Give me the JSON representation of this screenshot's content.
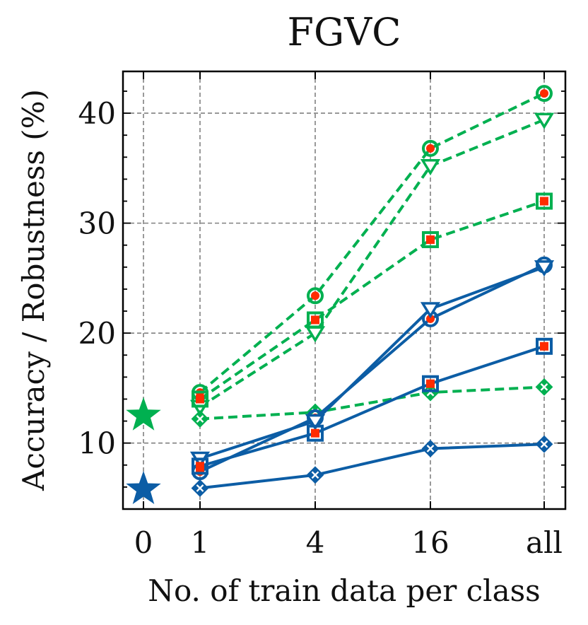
{
  "chart_data": {
    "type": "line",
    "title": "FGVC",
    "xlabel": "No. of train data per class",
    "ylabel": "Accuracy / Robustness (%)",
    "categories": [
      "0",
      "1",
      "4",
      "16",
      "all"
    ],
    "ylim": [
      4,
      43.8
    ],
    "yticks": [
      10,
      20,
      30,
      40
    ],
    "grid": true,
    "colors": {
      "green": "#00b050",
      "blue": "#0c5da5",
      "red": "#ff2c00"
    },
    "zero_shot": [
      {
        "name": "zero-shot-green",
        "value": 12.5,
        "color": "green"
      },
      {
        "name": "zero-shot-blue",
        "value": 5.8,
        "color": "blue"
      }
    ],
    "series": [
      {
        "name": "green-circle",
        "color": "green",
        "marker": "circle",
        "linestyle": "dashed",
        "values": [
          null,
          14.6,
          23.4,
          36.8,
          41.8
        ]
      },
      {
        "name": "green-triangle",
        "color": "green",
        "marker": "triangle",
        "linestyle": "dashed",
        "values": [
          null,
          13.3,
          20.0,
          35.2,
          39.4
        ]
      },
      {
        "name": "green-square",
        "color": "green",
        "marker": "square",
        "linestyle": "dashed",
        "values": [
          null,
          14.0,
          21.2,
          28.5,
          32.0
        ]
      },
      {
        "name": "green-x",
        "color": "green",
        "marker": "x",
        "linestyle": "dashed",
        "values": [
          null,
          12.2,
          12.8,
          14.6,
          15.1
        ]
      },
      {
        "name": "blue-circle",
        "color": "blue",
        "marker": "circle",
        "linestyle": "solid",
        "values": [
          null,
          7.4,
          12.3,
          21.3,
          26.2
        ]
      },
      {
        "name": "blue-triangle",
        "color": "blue",
        "marker": "triangle",
        "linestyle": "solid",
        "values": [
          null,
          8.6,
          12.0,
          22.2,
          26.0
        ]
      },
      {
        "name": "blue-square",
        "color": "blue",
        "marker": "square",
        "linestyle": "solid",
        "values": [
          null,
          7.9,
          10.9,
          15.4,
          18.8
        ]
      },
      {
        "name": "blue-x",
        "color": "blue",
        "marker": "x",
        "linestyle": "solid",
        "values": [
          null,
          5.9,
          7.1,
          9.5,
          9.9
        ]
      }
    ]
  }
}
